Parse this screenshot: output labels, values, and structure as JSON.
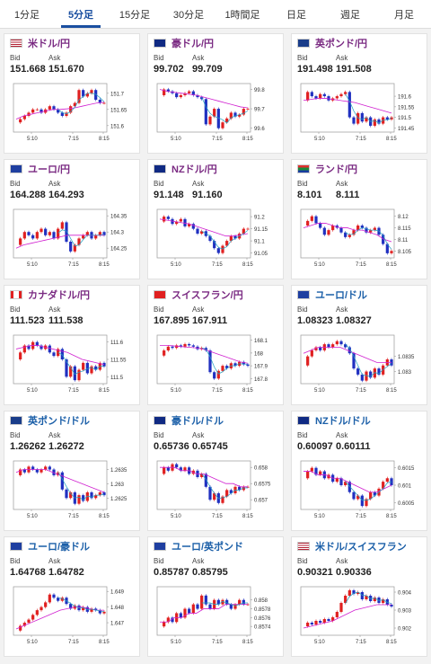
{
  "tabs": [
    {
      "label": "1分足"
    },
    {
      "label": "5分足"
    },
    {
      "label": "15分足"
    },
    {
      "label": "30分足"
    },
    {
      "label": "1時間足"
    },
    {
      "label": "日足"
    },
    {
      "label": "週足"
    },
    {
      "label": "月足"
    }
  ],
  "active_tab": 1,
  "labels": {
    "bid": "Bid",
    "ask": "Ask"
  },
  "x_ticks": [
    "5:10",
    "7:15",
    "8:15"
  ],
  "colors": {
    "up": "#e02020",
    "down": "#2030c0",
    "ma_short": "#20a0c0",
    "ma_long": "#d020d0"
  },
  "cards": [
    {
      "name": "米ドル/円",
      "flag": "us-jp-flag",
      "color": "purple",
      "bid": "151.668",
      "ask": "151.670",
      "ticks": [
        "151.7",
        "151.65",
        "151.6"
      ],
      "ylim": [
        151.58,
        151.73
      ],
      "prices": [
        151.61,
        151.62,
        151.63,
        151.64,
        151.65,
        151.65,
        151.64,
        151.65,
        151.66,
        151.65,
        151.64,
        151.63,
        151.64,
        151.66,
        151.67,
        151.71,
        151.69,
        151.7,
        151.71,
        151.68,
        151.67,
        151.67
      ],
      "ma": [
        151.62,
        151.63,
        151.635,
        151.64,
        151.645,
        151.65,
        151.65,
        151.652,
        151.655,
        151.66,
        151.665,
        151.67,
        151.672
      ]
    },
    {
      "name": "豪ドル/円",
      "flag": "au-jp-flag",
      "color": "purple",
      "bid": "99.702",
      "ask": "99.709",
      "ticks": [
        "99.8",
        "99.7",
        "99.6"
      ],
      "ylim": [
        99.58,
        99.83
      ],
      "prices": [
        99.77,
        99.8,
        99.79,
        99.78,
        99.76,
        99.77,
        99.78,
        99.79,
        99.77,
        99.76,
        99.75,
        99.62,
        99.66,
        99.7,
        99.6,
        99.63,
        99.65,
        99.68,
        99.66,
        99.67,
        99.7,
        99.7
      ],
      "ma": [
        99.8,
        99.79,
        99.785,
        99.78,
        99.775,
        99.77,
        99.76,
        99.75,
        99.74,
        99.73,
        99.72,
        99.71,
        99.705
      ]
    },
    {
      "name": "英ポンド/円",
      "flag": "gb-jp-flag",
      "color": "purple",
      "bid": "191.498",
      "ask": "191.508",
      "ticks": [
        "191.6",
        "191.55",
        "191.5",
        "191.45"
      ],
      "ylim": [
        191.43,
        191.66
      ],
      "prices": [
        191.58,
        191.62,
        191.6,
        191.59,
        191.61,
        191.6,
        191.58,
        191.59,
        191.6,
        191.61,
        191.62,
        191.5,
        191.47,
        191.52,
        191.48,
        191.5,
        191.46,
        191.49,
        191.47,
        191.5,
        191.49,
        191.5
      ],
      "ma": [
        191.58,
        191.585,
        191.59,
        191.59,
        191.585,
        191.58,
        191.575,
        191.57,
        191.56,
        191.55,
        191.54,
        191.53,
        191.52
      ]
    },
    {
      "name": "ユーロ/円",
      "flag": "eu-jp-flag",
      "color": "purple",
      "bid": "164.288",
      "ask": "164.293",
      "ticks": [
        "164.35",
        "164.3",
        "164.25"
      ],
      "ylim": [
        164.22,
        164.37
      ],
      "prices": [
        164.26,
        164.28,
        164.3,
        164.29,
        164.28,
        164.3,
        164.31,
        164.29,
        164.3,
        164.28,
        164.31,
        164.33,
        164.27,
        164.24,
        164.26,
        164.28,
        164.29,
        164.3,
        164.28,
        164.29,
        164.3,
        164.29
      ],
      "ma": [
        164.25,
        164.26,
        164.265,
        164.27,
        164.275,
        164.28,
        164.285,
        164.29,
        164.29,
        164.29,
        164.29,
        164.29,
        164.29
      ]
    },
    {
      "name": "NZドル/円",
      "flag": "nz-jp-flag",
      "color": "purple",
      "bid": "91.148",
      "ask": "91.160",
      "ticks": [
        "91.2",
        "91.15",
        "91.1",
        "91.05"
      ],
      "ylim": [
        91.03,
        91.23
      ],
      "prices": [
        91.18,
        91.2,
        91.19,
        91.17,
        91.18,
        91.19,
        91.16,
        91.17,
        91.15,
        91.13,
        91.14,
        91.12,
        91.1,
        91.07,
        91.05,
        91.08,
        91.1,
        91.12,
        91.11,
        91.13,
        91.15,
        91.15
      ],
      "ma": [
        91.19,
        91.185,
        91.18,
        91.175,
        91.17,
        91.16,
        91.15,
        91.14,
        91.13,
        91.12,
        91.12,
        91.125,
        91.13
      ]
    },
    {
      "name": "ランド/円",
      "flag": "za-jp-flag",
      "color": "purple",
      "bid": "8.101",
      "ask": "8.111",
      "ticks": [
        "8.12",
        "8.115",
        "8.11",
        "8.105"
      ],
      "ylim": [
        8.102,
        8.123
      ],
      "prices": [
        8.116,
        8.118,
        8.12,
        8.117,
        8.115,
        8.112,
        8.114,
        8.116,
        8.115,
        8.113,
        8.111,
        8.112,
        8.114,
        8.116,
        8.115,
        8.113,
        8.114,
        8.115,
        8.112,
        8.108,
        8.104,
        8.105
      ],
      "ma": [
        8.115,
        8.116,
        8.117,
        8.117,
        8.116,
        8.115,
        8.115,
        8.114,
        8.114,
        8.113,
        8.112,
        8.11,
        8.109
      ]
    },
    {
      "name": "カナダドル/円",
      "flag": "ca-jp-flag",
      "color": "purple",
      "bid": "111.523",
      "ask": "111.538",
      "ticks": [
        "111.6",
        "111.55",
        "111.5"
      ],
      "ylim": [
        111.48,
        111.62
      ],
      "prices": [
        111.55,
        111.57,
        111.59,
        111.58,
        111.6,
        111.59,
        111.58,
        111.59,
        111.57,
        111.56,
        111.58,
        111.55,
        111.5,
        111.53,
        111.49,
        111.52,
        111.54,
        111.51,
        111.53,
        111.52,
        111.54,
        111.53
      ],
      "ma": [
        111.58,
        111.585,
        111.59,
        111.59,
        111.585,
        111.58,
        111.575,
        111.57,
        111.56,
        111.55,
        111.545,
        111.54,
        111.535
      ]
    },
    {
      "name": "スイスフラン/円",
      "flag": "ch-jp-flag",
      "color": "purple",
      "bid": "167.895",
      "ask": "167.911",
      "ticks": [
        "168.1",
        "168",
        "167.9",
        "167.8"
      ],
      "ylim": [
        167.76,
        168.14
      ],
      "prices": [
        167.98,
        168.02,
        168.05,
        168.04,
        168.06,
        168.05,
        168.07,
        168.06,
        168.05,
        168.03,
        168.04,
        168.02,
        167.85,
        167.8,
        167.86,
        167.9,
        167.88,
        167.92,
        167.9,
        167.93,
        167.91,
        167.9
      ],
      "ma": [
        168.06,
        168.06,
        168.055,
        168.05,
        168.045,
        168.04,
        168.03,
        168.01,
        167.99,
        167.97,
        167.95,
        167.93,
        167.92
      ]
    },
    {
      "name": "ユーロ/ドル",
      "flag": "eu-us-flag",
      "color": "blue",
      "bid": "1.08323",
      "ask": "1.08327",
      "ticks": [
        "1.0835",
        "1.083"
      ],
      "ylim": [
        1.0826,
        1.0842
      ],
      "prices": [
        1.0832,
        1.0835,
        1.0837,
        1.0838,
        1.0837,
        1.0839,
        1.0838,
        1.0839,
        1.084,
        1.0839,
        1.0838,
        1.0836,
        1.0831,
        1.0829,
        1.0827,
        1.083,
        1.0828,
        1.0831,
        1.0829,
        1.0832,
        1.0834,
        1.0832
      ],
      "ma": [
        1.0836,
        1.0837,
        1.0838,
        1.0838,
        1.0838,
        1.0838,
        1.0837,
        1.0836,
        1.0835,
        1.0834,
        1.0833,
        1.0833,
        1.0833
      ]
    },
    {
      "name": "英ポンド/ドル",
      "flag": "gb-us-flag",
      "color": "blue",
      "bid": "1.26262",
      "ask": "1.26272",
      "ticks": [
        "1.2635",
        "1.263",
        "1.2625"
      ],
      "ylim": [
        1.2621,
        1.2638
      ],
      "prices": [
        1.2633,
        1.2635,
        1.2634,
        1.2636,
        1.2635,
        1.2634,
        1.2635,
        1.2636,
        1.2635,
        1.2633,
        1.2634,
        1.2628,
        1.2625,
        1.2627,
        1.2623,
        1.2626,
        1.2624,
        1.2627,
        1.2625,
        1.2626,
        1.2627,
        1.2626
      ],
      "ma": [
        1.2634,
        1.2635,
        1.2635,
        1.2635,
        1.2635,
        1.2634,
        1.2633,
        1.2632,
        1.2631,
        1.263,
        1.2629,
        1.2628,
        1.2627
      ]
    },
    {
      "name": "豪ドル/ドル",
      "flag": "au-us-flag",
      "color": "blue",
      "bid": "0.65736",
      "ask": "0.65745",
      "ticks": [
        "0.658",
        "0.6575",
        "0.657"
      ],
      "ylim": [
        0.6567,
        0.6582
      ],
      "prices": [
        0.6578,
        0.658,
        0.6579,
        0.6581,
        0.658,
        0.6579,
        0.658,
        0.6578,
        0.6579,
        0.6577,
        0.6578,
        0.6574,
        0.657,
        0.6572,
        0.6569,
        0.6571,
        0.6573,
        0.6572,
        0.6574,
        0.6573,
        0.6574,
        0.6574
      ],
      "ma": [
        0.658,
        0.658,
        0.658,
        0.6579,
        0.6579,
        0.6578,
        0.6578,
        0.6577,
        0.6576,
        0.6575,
        0.6575,
        0.6574,
        0.6574
      ]
    },
    {
      "name": "NZドル/ドル",
      "flag": "nz-us-flag",
      "color": "blue",
      "bid": "0.60097",
      "ask": "0.60111",
      "ticks": [
        "0.6015",
        "0.601",
        "0.6005"
      ],
      "ylim": [
        0.6003,
        0.6017
      ],
      "prices": [
        0.6012,
        0.6014,
        0.6015,
        0.6013,
        0.6014,
        0.6012,
        0.6013,
        0.6011,
        0.6012,
        0.601,
        0.6011,
        0.6008,
        0.6006,
        0.6007,
        0.6004,
        0.6006,
        0.6008,
        0.6007,
        0.6009,
        0.6011,
        0.6012,
        0.601
      ],
      "ma": [
        0.6014,
        0.6014,
        0.6013,
        0.6013,
        0.6012,
        0.6012,
        0.6011,
        0.601,
        0.6009,
        0.6008,
        0.6008,
        0.6009,
        0.601
      ]
    },
    {
      "name": "ユーロ/豪ドル",
      "flag": "eu-au-flag",
      "color": "blue",
      "bid": "1.64768",
      "ask": "1.64782",
      "ticks": [
        "1.649",
        "1.648",
        "1.647"
      ],
      "ylim": [
        1.6462,
        1.6493
      ],
      "prices": [
        1.6465,
        1.6468,
        1.647,
        1.6472,
        1.6475,
        1.6478,
        1.648,
        1.6483,
        1.6488,
        1.6486,
        1.6484,
        1.6486,
        1.6482,
        1.6479,
        1.6481,
        1.6478,
        1.648,
        1.6477,
        1.6479,
        1.6478,
        1.6476,
        1.6477
      ],
      "ma": [
        1.6466,
        1.6468,
        1.647,
        1.6472,
        1.6474,
        1.6476,
        1.6478,
        1.6479,
        1.648,
        1.648,
        1.6479,
        1.6478,
        1.6478
      ]
    },
    {
      "name": "ユーロ/英ポンド",
      "flag": "eu-gb-flag",
      "color": "blue",
      "bid": "0.85787",
      "ask": "0.85795",
      "ticks": [
        "0.858",
        "0.8578",
        "0.8576",
        "0.8574"
      ],
      "ylim": [
        0.8572,
        0.8583
      ],
      "prices": [
        0.8574,
        0.8575,
        0.8576,
        0.8575,
        0.8577,
        0.8576,
        0.8578,
        0.8577,
        0.8579,
        0.8578,
        0.8581,
        0.8579,
        0.8578,
        0.858,
        0.8579,
        0.858,
        0.8579,
        0.8578,
        0.8579,
        0.858,
        0.8579,
        0.8579
      ],
      "ma": [
        0.8575,
        0.8575,
        0.8576,
        0.8576,
        0.8577,
        0.8577,
        0.8578,
        0.8578,
        0.8578,
        0.8579,
        0.8579,
        0.8579,
        0.8579
      ]
    },
    {
      "name": "米ドル/スイスフラン",
      "flag": "us-ch-flag",
      "color": "blue",
      "bid": "0.90321",
      "ask": "0.90336",
      "ticks": [
        "0.904",
        "0.903",
        "0.902"
      ],
      "ylim": [
        0.9016,
        0.9043
      ],
      "prices": [
        0.9021,
        0.9023,
        0.9022,
        0.9024,
        0.9023,
        0.9025,
        0.9024,
        0.9026,
        0.9029,
        0.9034,
        0.9038,
        0.9041,
        0.9039,
        0.904,
        0.9036,
        0.9038,
        0.9035,
        0.9037,
        0.9034,
        0.9036,
        0.9033,
        0.9032
      ],
      "ma": [
        0.902,
        0.9021,
        0.9022,
        0.9023,
        0.9024,
        0.9026,
        0.9028,
        0.903,
        0.9031,
        0.9032,
        0.9033,
        0.9033,
        0.9033
      ]
    }
  ]
}
